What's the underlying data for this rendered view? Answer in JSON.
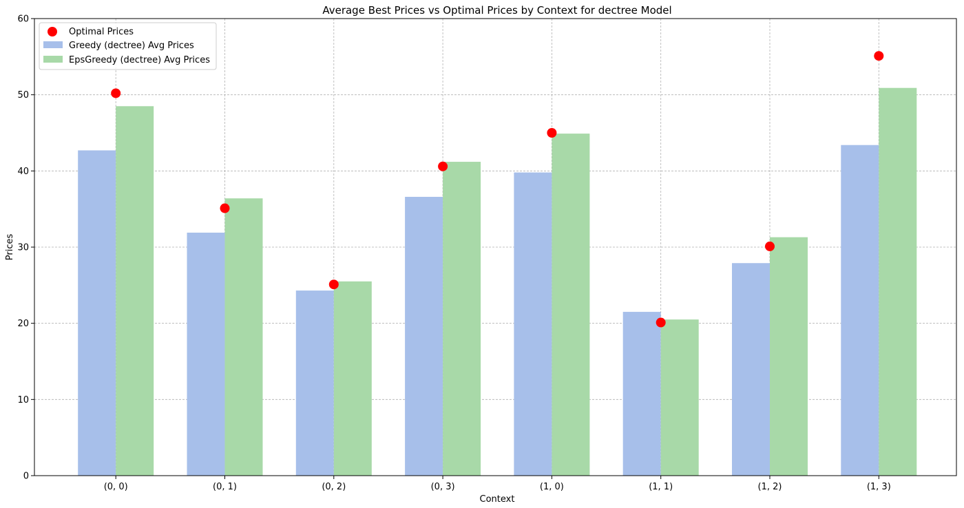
{
  "chart_data": {
    "type": "bar",
    "title": "Average Best Prices vs Optimal Prices by Context for dectree Model",
    "xlabel": "Context",
    "ylabel": "Prices",
    "categories": [
      "(0, 0)",
      "(0, 1)",
      "(0, 2)",
      "(0, 3)",
      "(1, 0)",
      "(1, 1)",
      "(1, 2)",
      "(1, 3)"
    ],
    "ylim": [
      0,
      60
    ],
    "yticks": [
      0,
      10,
      20,
      30,
      40,
      50,
      60
    ],
    "grid": true,
    "legend_position": "top-left",
    "series": [
      {
        "name": "Greedy (dectree) Avg Prices",
        "kind": "bar",
        "color": "#a7bfea",
        "values": [
          42.7,
          31.9,
          24.3,
          36.6,
          39.8,
          21.5,
          27.9,
          43.4
        ]
      },
      {
        "name": "EpsGreedy (dectree) Avg Prices",
        "kind": "bar",
        "color": "#a8d9a8",
        "values": [
          48.5,
          36.4,
          25.5,
          41.2,
          44.9,
          20.5,
          31.3,
          50.9
        ]
      },
      {
        "name": "Optimal Prices",
        "kind": "scatter",
        "color": "#ff0000",
        "values": [
          50.2,
          35.1,
          25.1,
          40.6,
          45.0,
          20.1,
          30.1,
          55.1
        ]
      }
    ]
  }
}
